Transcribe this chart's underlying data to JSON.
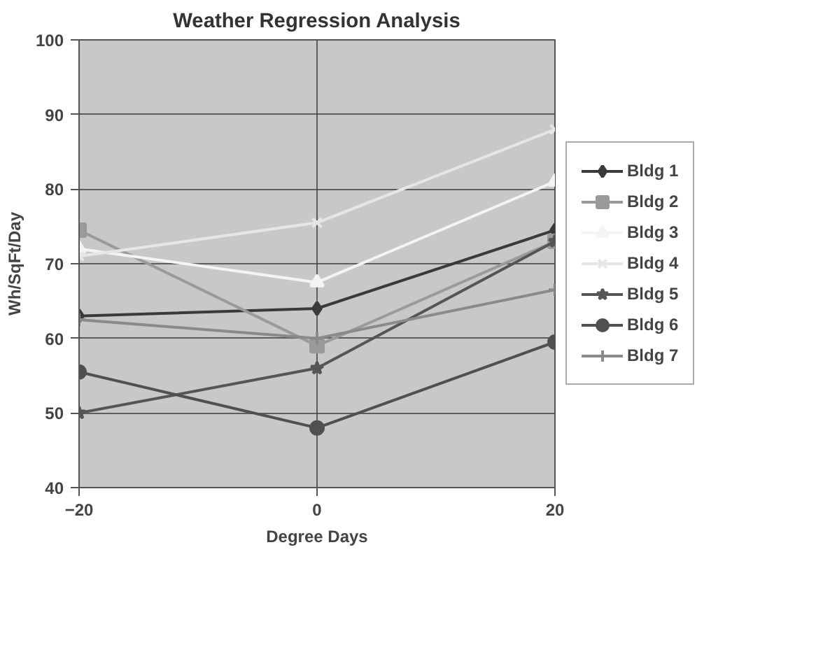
{
  "chart_data": {
    "type": "line",
    "title": "Weather Regression Analysis",
    "xlabel": "Degree Days",
    "ylabel": "Wh/SqFt/Day",
    "x": [
      -20,
      0,
      20
    ],
    "xlim": [
      -20,
      20
    ],
    "xticks": [
      -20,
      0,
      20
    ],
    "ylim": [
      40,
      100
    ],
    "yticks": [
      40,
      50,
      60,
      70,
      80,
      90,
      100
    ],
    "grid": true,
    "legend": "right",
    "series": [
      {
        "name": "Bldg 1",
        "color": "#3a3a3a",
        "marker": "diamond",
        "values": [
          63,
          64,
          74.5
        ]
      },
      {
        "name": "Bldg 2",
        "color": "#9a9a9a",
        "marker": "square",
        "values": [
          74.5,
          59,
          73
        ]
      },
      {
        "name": "Bldg 3",
        "color": "#f4f4f4",
        "marker": "triangle",
        "values": [
          72,
          67.5,
          81
        ]
      },
      {
        "name": "Bldg 4",
        "color": "#e6e6e6",
        "marker": "x",
        "values": [
          71,
          75.5,
          88
        ]
      },
      {
        "name": "Bldg 5",
        "color": "#555555",
        "marker": "star",
        "values": [
          50,
          56,
          73
        ]
      },
      {
        "name": "Bldg 6",
        "color": "#505050",
        "marker": "circle",
        "values": [
          55.5,
          48,
          59.5
        ]
      },
      {
        "name": "Bldg 7",
        "color": "#8a8a8a",
        "marker": "cross",
        "values": [
          62.5,
          60,
          66.5
        ]
      }
    ]
  }
}
